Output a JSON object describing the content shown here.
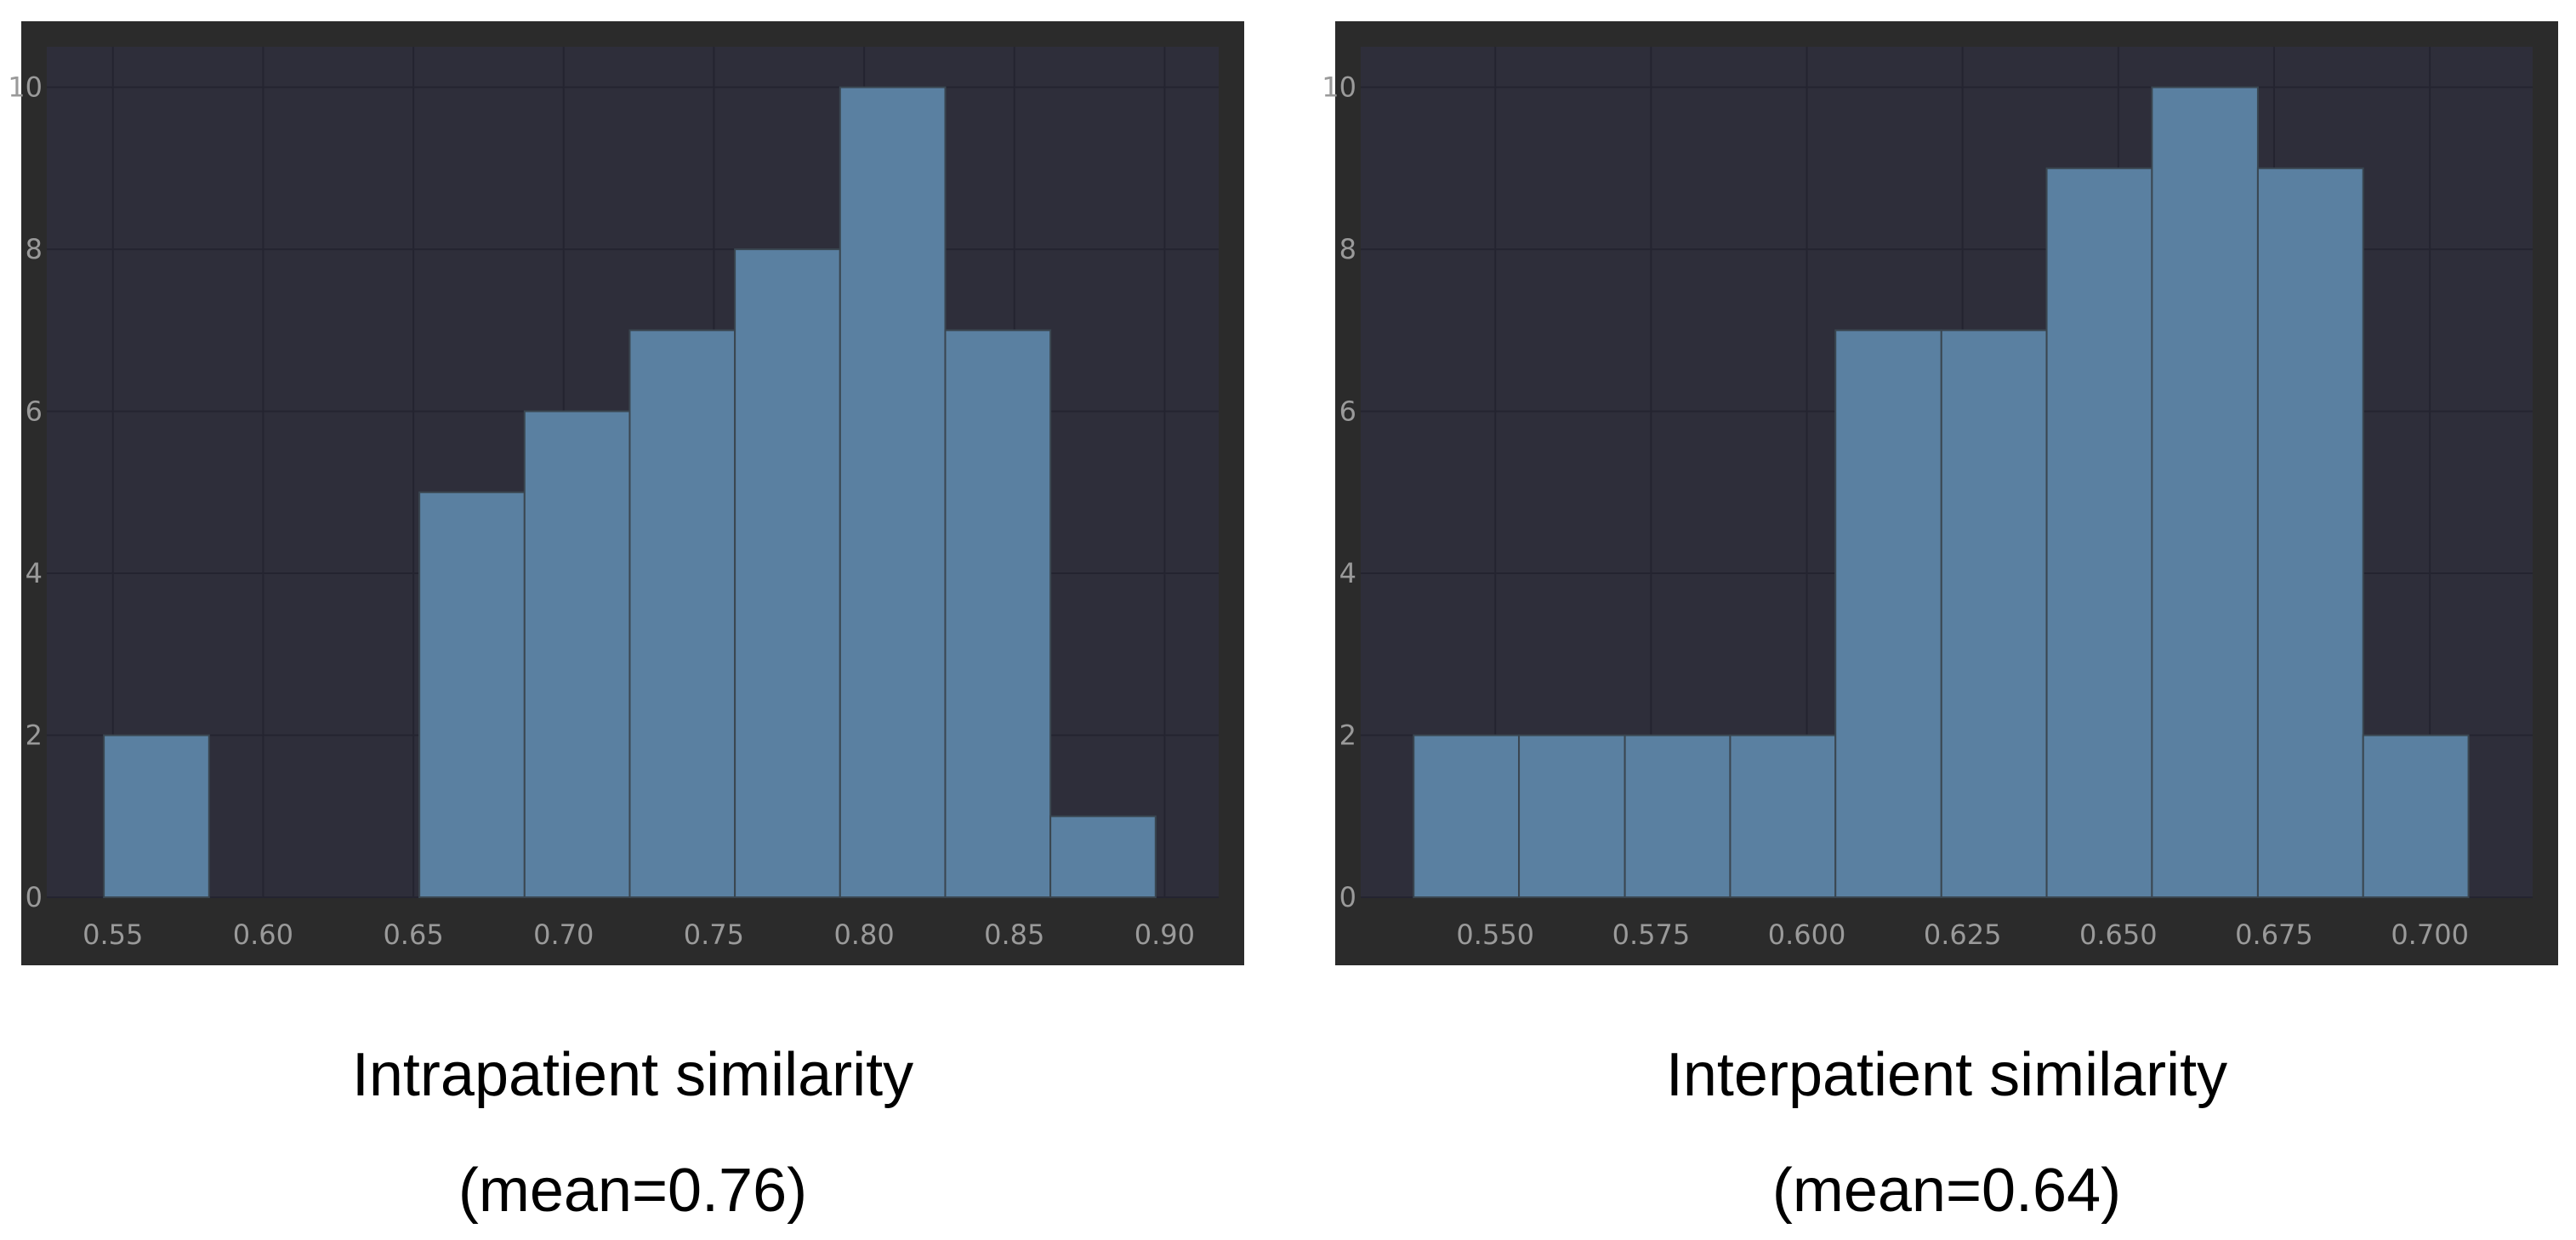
{
  "theme": {
    "panel_bg": "#2b2b2b",
    "plot_bg": "#2e2e3a",
    "grid": "#242430",
    "bar_fill": "#5a80a1",
    "bar_edge": "#3a4650",
    "tick_text": "#9a9a9a"
  },
  "chart_data": [
    {
      "type": "bar",
      "subtype": "histogram",
      "caption": "Intrapatient similarity",
      "mean_label": "(mean=0.76)",
      "xlim": [
        0.528,
        0.918
      ],
      "ylim": [
        0,
        10.5
      ],
      "xticks": [
        0.55,
        0.6,
        0.65,
        0.7,
        0.75,
        0.8,
        0.85,
        0.9
      ],
      "xtick_labels": [
        "0.55",
        "0.60",
        "0.65",
        "0.70",
        "0.75",
        "0.80",
        "0.85",
        "0.90"
      ],
      "yticks": [
        0,
        2,
        4,
        6,
        8,
        10
      ],
      "ytick_labels": [
        "0",
        "2",
        "4",
        "6",
        "8",
        "10"
      ],
      "grid": true,
      "bin_edges": [
        0.547,
        0.582,
        0.617,
        0.652,
        0.687,
        0.722,
        0.757,
        0.792,
        0.827,
        0.862,
        0.897
      ],
      "counts": [
        2,
        0,
        0,
        5,
        6,
        7,
        8,
        10,
        7,
        1
      ]
    },
    {
      "type": "bar",
      "subtype": "histogram",
      "caption": "Interpatient similarity",
      "mean_label": "(mean=0.64)",
      "xlim": [
        0.5284,
        0.7165
      ],
      "ylim": [
        0,
        10.5
      ],
      "xticks": [
        0.55,
        0.575,
        0.6,
        0.625,
        0.65,
        0.675,
        0.7
      ],
      "xtick_labels": [
        "0.550",
        "0.575",
        "0.600",
        "0.625",
        "0.650",
        "0.675",
        "0.700"
      ],
      "yticks": [
        0,
        2,
        4,
        6,
        8,
        10
      ],
      "ytick_labels": [
        "0",
        "2",
        "4",
        "6",
        "8",
        "10"
      ],
      "grid": true,
      "bin_edges": [
        0.5369,
        0.5538,
        0.5708,
        0.5877,
        0.6046,
        0.6216,
        0.6385,
        0.6554,
        0.6724,
        0.6893,
        0.7062
      ],
      "counts": [
        2,
        2,
        2,
        2,
        7,
        7,
        9,
        10,
        9,
        2
      ]
    }
  ]
}
